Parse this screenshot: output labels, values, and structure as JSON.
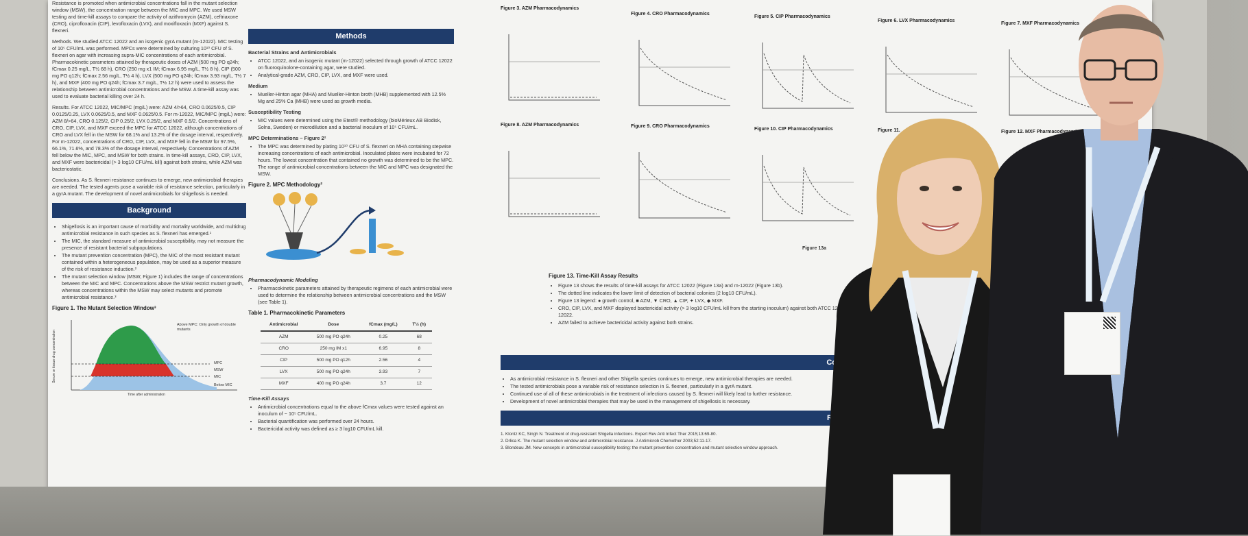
{
  "poster": {
    "abstract": {
      "lead": "Resistance is promoted when antimicrobial concentrations fall in the mutant selection window (MSW), the concentration range between the MIC and MPC. We used MSW testing and time-kill assays to compare the activity of azithromycin (AZM), ceftriaxone (CRO), ciprofloxacin (CIP), levofloxacin (LVX), and moxifloxacin (MXF) against S. flexneri.",
      "methods": "Methods. We studied ATCC 12022 and an isogenic gyrA mutant (m-12022). MIC testing of 10⁵ CFU/mL was performed. MPCs were determined by culturing 10¹⁰ CFU of S. flexneri on agar with increasing supra-MIC concentrations of each antimicrobial. Pharmacokinetic parameters attained by therapeutic doses of AZM (500 mg PO q24h; fCmax 0.25 mg/L, T½ 68 h), CRO (250 mg x1 IM; fCmax 6.95 mg/L, T½ 8 h), CIP (500 mg PO q12h; fCmax 2.56 mg/L, T½ 4 h), LVX (500 mg PO q24h; fCmax 3.93 mg/L, T½ 7 h), and MXF (400 mg PO q24h; fCmax 3.7 mg/L, T½ 12 h) were used to assess the relationship between antimicrobial concentrations and the MSW. A time-kill assay was used to evaluate bacterial killing over 24 h.",
      "results": "Results. For ATCC 12022, MIC/MPC (mg/L) were: AZM 4/>64, CRO 0.0625/0.5, CIP 0.0125/0.25, LVX 0.0625/0.5, and MXF 0.0625/0.5. For m-12022, MIC/MPC (mg/L) were: AZM 8/>64, CRO 0.125/2, CIP 0.25/2, LVX 0.25/2, and MXF 0.5/2. Concentrations of CRO, CIP, LVX, and MXF exceed the MPC for ATCC 12022, although concentrations of CRO and LVX fell in the MSW for 68.1% and 13.2% of the dosage interval, respectively. For m-12022, concentrations of CRO, CIP, LVX, and MXF fell in the MSW for 97.5%, 66.1%, 71.6%, and 78.3% of the dosage interval, respectively. Concentrations of AZM fell below the MIC, MPC, and MSW for both strains. In time-kill assays, CRO, CIP, LVX, and MXF were bactericidal (> 3 log10 CFU/mL kill) against both strains, while AZM was bacteriostatic.",
      "conclusions": "Conclusions. As S. flexneri resistance continues to emerge, new antimicrobial therapies are needed. The tested agents pose a variable risk of resistance selection, particularly in a gyrA mutant. The development of novel antimicrobials for shigellosis is needed."
    },
    "background": {
      "heading": "Background",
      "bullets": [
        "Shigellosis is an important cause of morbidity and mortality worldwide, and multidrug antimicrobial resistance in such species as S. flexneri has emerged.¹",
        "The MIC, the standard measure of antimicrobial susceptibility, may not measure the presence of resistant bacterial subpopulations.",
        "The mutant prevention concentration (MPC), the MIC of the most resistant mutant contained within a heterogeneous population, may be used as a superior measure of the risk of resistance induction.²",
        "The mutant selection window (MSW, Figure 1) includes the range of concentrations between the MIC and MPC. Concentrations above the MSW restrict mutant growth, whereas concentrations within the MSW may select mutants and promote antimicrobial resistance.³"
      ],
      "fig1_title": "Figure 1. The Mutant Selection Window³",
      "fig1_xlabel": "Time after administration",
      "fig1_ylabel": "Serum or tissue drug concentration",
      "fig1_labels": [
        "Above MPC: Only growth of double mutants",
        "MPC",
        "MSW",
        "MIC",
        "Below MIC"
      ]
    },
    "methods": {
      "heading": "Methods",
      "strains_title": "Bacterial Strains and Antimicrobials",
      "strains": [
        "ATCC 12022, and an isogenic mutant (m-12022) selected through growth of ATCC 12022 on fluoroquinolone-containing agar, were studied.",
        "Analytical-grade AZM, CRO, CIP, LVX, and MXF were used."
      ],
      "medium_title": "Medium",
      "medium": [
        "Mueller-Hinton agar (MHA) and Mueller-Hinton broth (MHB) supplemented with 12.5% Mg and 25% Ca (MHB) were used as growth media."
      ],
      "susc_title": "Susceptibility Testing",
      "susc": [
        "MIC values were determined using the Etest® methodology (bioMérieux AB Biodisk, Solna, Sweden) or microdilution and a bacterial inoculum of 10⁵ CFU/mL."
      ],
      "mpc_title": "MPC Determinations – Figure 2²",
      "mpc": [
        "The MPC was determined by plating 10¹⁰ CFU of S. flexneri on MHA containing stepwise increasing concentrations of each antimicrobial. Inoculated plates were incubated for 72 hours. The lowest concentration that contained no growth was determined to be the MPC. The range of antimicrobial concentrations between the MIC and MPC was designated the MSW."
      ],
      "fig2_title": "Figure 2. MPC Methodology²",
      "pd_title": "Pharmacodynamic Modeling",
      "pd": [
        "Pharmacokinetic parameters attained by therapeutic regimens of each antimicrobial were used to determine the relationship between antimicrobial concentrations and the MSW (see Table 1)."
      ],
      "table_title": "Table 1. Pharmacokinetic Parameters",
      "table_headers": [
        "Antimicrobial",
        "Dose",
        "fCmax (mg/L)",
        "T½ (h)"
      ],
      "table_rows": [
        [
          "AZM",
          "500 mg PO q24h",
          "0.25",
          "68"
        ],
        [
          "CRO",
          "250 mg IM x1",
          "6.95",
          "8"
        ],
        [
          "CIP",
          "500 mg PO q12h",
          "2.56",
          "4"
        ],
        [
          "LVX",
          "500 mg PO q24h",
          "3.93",
          "7"
        ],
        [
          "MXF",
          "400 mg PO q24h",
          "3.7",
          "12"
        ]
      ],
      "tk_title": "Time-Kill Assays",
      "tk": [
        "Antimicrobial concentrations equal to the above fCmax values were tested against an inoculum of ~ 10⁵ CFU/mL.",
        "Bacterial quantification was performed over 24 hours.",
        "Bactericidal activity was defined as ≥ 3 log10 CFU/mL kill."
      ]
    },
    "figures": {
      "row1": [
        "Figure 3. AZM Pharmacodynamics",
        "Figure 4. CRO Pharmacodynamics",
        "Figure 5. CIP Pharmacodynamics",
        "Figure 6. LVX Pharmacodynamics",
        "Figure 7. MXF Pharmacodynamics"
      ],
      "row2": [
        "Figure 8. AZM Pharmacodynamics",
        "Figure 9. CRO Pharmacodynamics",
        "Figure 10. CIP Pharmacodynamics",
        "Figure 11.",
        "Figure 12. MXF Pharmacodynamics"
      ],
      "fig13_title": "Figure 13. Time-Kill Assay Results",
      "fig13_notes": [
        "Figure 13 shows the results of time-kill assays for ATCC 12022 (Figure 13a) and m-12022 (Figure 13b).",
        "The dotted line indicates the lower limit of detection of bacterial colonies (2 log10 CFU/mL).",
        "Figure 13 legend: ● growth control, ■ AZM, ▼ CRO, ▲ CIP, ✦ LVX, ◆ MXF.",
        "CRO, CIP, LVX, and MXF displayed bactericidal activity (> 3 log10 CFU/mL kill from the starting inoculum) against both ATCC 12022 and m-12022.",
        "AZM failed to achieve bactericidal activity against both strains."
      ],
      "fig13a_label": "Figure 13a"
    },
    "conclusions": {
      "heading": "Co",
      "bullets": [
        "As antimicrobial resistance in S. flexneri and other Shigella species continues to emerge, new antimicrobial therapies are needed.",
        "The tested antimicrobials pose a variable risk of resistance selection in S. flexneri, particularly in a gyrA mutant.",
        "Continued use of all of these antimicrobials in the treatment of infections caused by S. flexneri will likely lead to further resistance.",
        "Development of novel antimicrobial therapies that may be used in the management of shigellosis is necessary."
      ]
    },
    "references": {
      "heading": "Re",
      "items": [
        "1. Klontz KC, Singh N. Treatment of drug-resistant Shigella infections. Expert Rev Anti Infect Ther 2015;13:69-80.",
        "2. Drlica K. The mutant selection window and antimicrobial resistance. J Antimicrob Chemother 2003;52:11-17.",
        "3. Blondeau JM. New concepts in antimicrobial susceptibility testing: the mutant prevention concentration and mutant selection window approach."
      ]
    }
  },
  "colors": {
    "header_blue": "#1f3c6b",
    "poster_bg": "#f4f4f2",
    "msw_green": "#2e9b4a",
    "msw_red": "#d8332b",
    "msw_blue": "#9cc3e6"
  }
}
